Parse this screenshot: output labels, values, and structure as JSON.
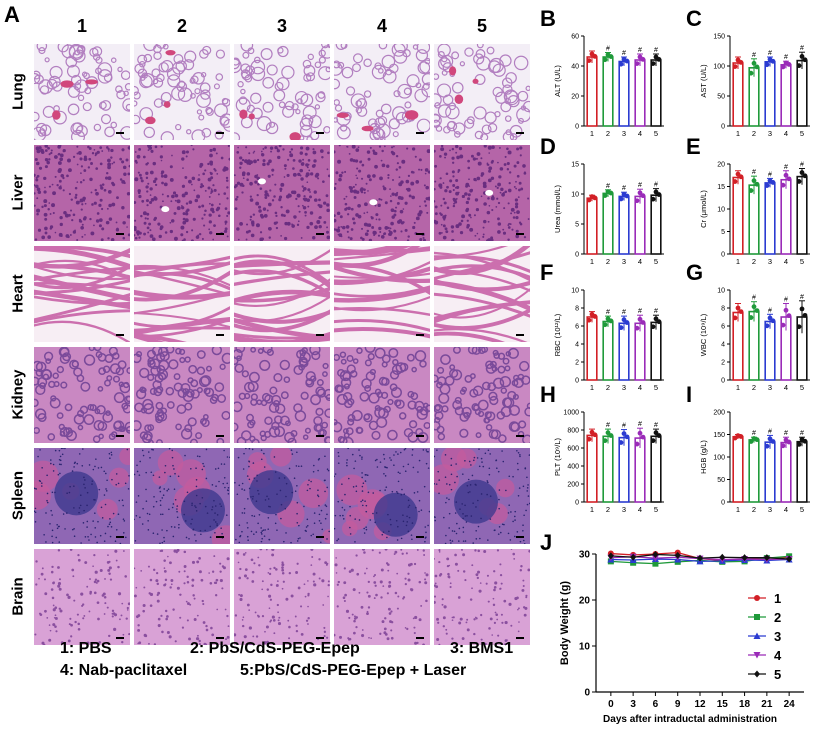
{
  "panel_letters": {
    "A": "A",
    "B": "B",
    "C": "C",
    "D": "D",
    "E": "E",
    "F": "F",
    "G": "G",
    "H": "H",
    "I": "I",
    "J": "J"
  },
  "histology": {
    "columns": [
      "1",
      "2",
      "3",
      "4",
      "5"
    ],
    "rows": [
      {
        "label": "Lung",
        "tissue": "lung",
        "colors": {
          "bg": "#f3eef6",
          "cell": "#b27fc0"
        }
      },
      {
        "label": "Liver",
        "tissue": "liver",
        "colors": {
          "bg": "#b565a8",
          "cell": "#6a2e80"
        }
      },
      {
        "label": "Heart",
        "tissue": "heart",
        "colors": {
          "bg": "#f7eef4",
          "cell": "#cc6fae"
        }
      },
      {
        "label": "Kidney",
        "tissue": "kidney",
        "colors": {
          "bg": "#c988c2",
          "cell": "#7a4a9a"
        }
      },
      {
        "label": "Spleen",
        "tissue": "spleen",
        "colors": {
          "bg": "#8f67b4",
          "cell": "#3d3a8e"
        }
      },
      {
        "label": "Brain",
        "tissue": "brain",
        "colors": {
          "bg": "#d9a2d6",
          "cell": "#8a4f9f"
        }
      }
    ]
  },
  "legend": {
    "item1": "1: PBS",
    "item2": "2: PbS/CdS-PEG-Epep",
    "item3": "3: BMS1",
    "item4": "4: Nab-paclitaxel",
    "item5": "5:PbS/CdS-PEG-Epep + Laser"
  },
  "group_colors": [
    "#d21f26",
    "#1f9a3a",
    "#2b3bd1",
    "#9a2bb8",
    "#111111"
  ],
  "chart_data": [
    {
      "id": "B",
      "type": "bar",
      "ylabel": "ALT (U/L)",
      "ylim": [
        0,
        60
      ],
      "yticks": [
        0,
        20,
        40,
        60
      ],
      "categories": [
        "1",
        "2",
        "3",
        "4",
        "5"
      ],
      "values": [
        46,
        46,
        43,
        44,
        44
      ],
      "errors": [
        4,
        3,
        3,
        4,
        4
      ],
      "sig": [
        "",
        "#",
        "#",
        "#",
        "#"
      ]
    },
    {
      "id": "C",
      "type": "bar",
      "ylabel": "AST (U/L)",
      "ylim": [
        0,
        150
      ],
      "yticks": [
        0,
        50,
        100,
        150
      ],
      "categories": [
        "1",
        "2",
        "3",
        "4",
        "5"
      ],
      "values": [
        105,
        97,
        107,
        102,
        109
      ],
      "errors": [
        10,
        15,
        8,
        6,
        14
      ],
      "sig": [
        "",
        "#",
        "#",
        "#",
        "#"
      ]
    },
    {
      "id": "D",
      "type": "bar",
      "ylabel": "Urea (mmol/L)",
      "ylim": [
        0,
        15
      ],
      "yticks": [
        0,
        5,
        10,
        15
      ],
      "categories": [
        "1",
        "2",
        "3",
        "4",
        "5"
      ],
      "values": [
        9.3,
        10.1,
        9.6,
        9.6,
        9.8
      ],
      "errors": [
        0.5,
        0.6,
        0.7,
        1.2,
        1.1
      ],
      "sig": [
        "",
        "#",
        "#",
        "#",
        "#"
      ]
    },
    {
      "id": "E",
      "type": "bar",
      "ylabel": "Cr (μmol/L)",
      "ylim": [
        0,
        20
      ],
      "yticks": [
        0,
        5,
        10,
        15,
        20
      ],
      "categories": [
        "1",
        "2",
        "3",
        "4",
        "5"
      ],
      "values": [
        17,
        15.3,
        15.8,
        16.5,
        17.2
      ],
      "errors": [
        1.5,
        2,
        1,
        2,
        1.8
      ],
      "sig": [
        "",
        "#",
        "#",
        "#",
        "#"
      ]
    },
    {
      "id": "F",
      "type": "bar",
      "ylabel": "RBC (10¹²/L)",
      "ylim": [
        0,
        10
      ],
      "yticks": [
        0,
        2,
        4,
        6,
        8,
        10
      ],
      "categories": [
        "1",
        "2",
        "3",
        "4",
        "5"
      ],
      "values": [
        7,
        6.5,
        6.3,
        6.3,
        6.4
      ],
      "errors": [
        0.6,
        0.6,
        0.8,
        0.9,
        0.8
      ],
      "sig": [
        "",
        "#",
        "#",
        "#",
        "#"
      ]
    },
    {
      "id": "G",
      "type": "bar",
      "ylabel": "WBC (10⁹/L)",
      "ylim": [
        0,
        10
      ],
      "yticks": [
        0,
        2,
        4,
        6,
        8,
        10
      ],
      "categories": [
        "1",
        "2",
        "3",
        "4",
        "5"
      ],
      "values": [
        7.5,
        7.6,
        6.5,
        7,
        7
      ],
      "errors": [
        1,
        1.1,
        0.8,
        1.5,
        1.8
      ],
      "sig": [
        "",
        "#",
        "#",
        "#",
        "#"
      ]
    },
    {
      "id": "H",
      "type": "bar",
      "ylabel": "PLT (10⁹/L)",
      "ylim": [
        0,
        1000
      ],
      "yticks": [
        0,
        200,
        400,
        600,
        800,
        1000
      ],
      "categories": [
        "1",
        "2",
        "3",
        "4",
        "5"
      ],
      "values": [
        740,
        730,
        715,
        710,
        730
      ],
      "errors": [
        70,
        80,
        90,
        110,
        80
      ],
      "sig": [
        "",
        "#",
        "#",
        "#",
        "#"
      ]
    },
    {
      "id": "I",
      "type": "bar",
      "ylabel": "HGB (g/L)",
      "ylim": [
        0,
        200
      ],
      "yticks": [
        0,
        50,
        100,
        150,
        200
      ],
      "categories": [
        "1",
        "2",
        "3",
        "4",
        "5"
      ],
      "values": [
        145,
        138,
        133,
        132,
        134
      ],
      "errors": [
        5,
        6,
        15,
        12,
        10
      ],
      "sig": [
        "",
        "#",
        "#",
        "#",
        "#"
      ]
    },
    {
      "id": "J",
      "type": "line",
      "ylabel": "Body Weight (g)",
      "xlabel": "Days after intraductal administration",
      "ylim": [
        0,
        30
      ],
      "yticks": [
        0,
        10,
        20,
        30
      ],
      "x": [
        0,
        3,
        6,
        9,
        12,
        15,
        18,
        21,
        24
      ],
      "series": [
        {
          "name": "1",
          "values": [
            30.1,
            29.8,
            30.0,
            30.3,
            29.0,
            28.6,
            28.9,
            29.1,
            29.3
          ]
        },
        {
          "name": "2",
          "values": [
            28.4,
            28.1,
            27.9,
            28.3,
            28.6,
            28.3,
            28.4,
            29.1,
            29.5
          ]
        },
        {
          "name": "3",
          "values": [
            28.8,
            28.7,
            28.9,
            28.8,
            28.4,
            28.5,
            28.7,
            28.6,
            28.8
          ]
        },
        {
          "name": "4",
          "values": [
            29.2,
            29.4,
            29.1,
            29.3,
            29.0,
            28.8,
            28.9,
            28.8,
            28.9
          ]
        },
        {
          "name": "5",
          "values": [
            29.6,
            29.3,
            29.9,
            29.7,
            29.1,
            29.3,
            29.2,
            29.2,
            28.9
          ]
        }
      ],
      "legend": [
        "1",
        "2",
        "3",
        "4",
        "5"
      ]
    }
  ]
}
